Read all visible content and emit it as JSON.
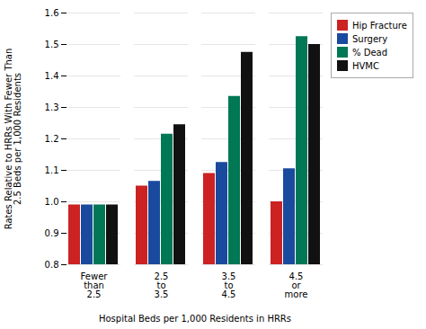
{
  "chart_data": {
    "type": "bar",
    "categories": [
      "Fewer\nthan\n2.5",
      "2.5\nto\n3.5",
      "3.5\nto\n4.5",
      "4.5\nor\nmore"
    ],
    "series": [
      {
        "name": "Hip Fracture",
        "color": "#cc2222",
        "values": [
          0.99,
          1.05,
          1.09,
          1.0
        ]
      },
      {
        "name": "Surgery",
        "color": "#1a4a9e",
        "values": [
          0.99,
          1.065,
          1.125,
          1.105
        ]
      },
      {
        "name": "% Dead",
        "color": "#007755",
        "values": [
          0.99,
          1.215,
          1.335,
          1.525
        ]
      },
      {
        "name": "HVMC",
        "color": "#111111",
        "values": [
          0.99,
          1.245,
          1.475,
          1.5
        ]
      }
    ],
    "xlabel": "Hospital Beds per 1,000 Residents in HRRs",
    "ylabel": "Rates Relative to HRRs With Fewer Than\n2.5 Beds per 1,000 Residents",
    "ylim": [
      0.8,
      1.6
    ],
    "yticks": [
      0.8,
      0.9,
      {
        "value": 1.0,
        "label": "1.0"
      },
      1.1,
      1.2,
      1.3,
      1.4,
      1.5,
      1.6
    ],
    "grid": true,
    "legend": "right"
  }
}
